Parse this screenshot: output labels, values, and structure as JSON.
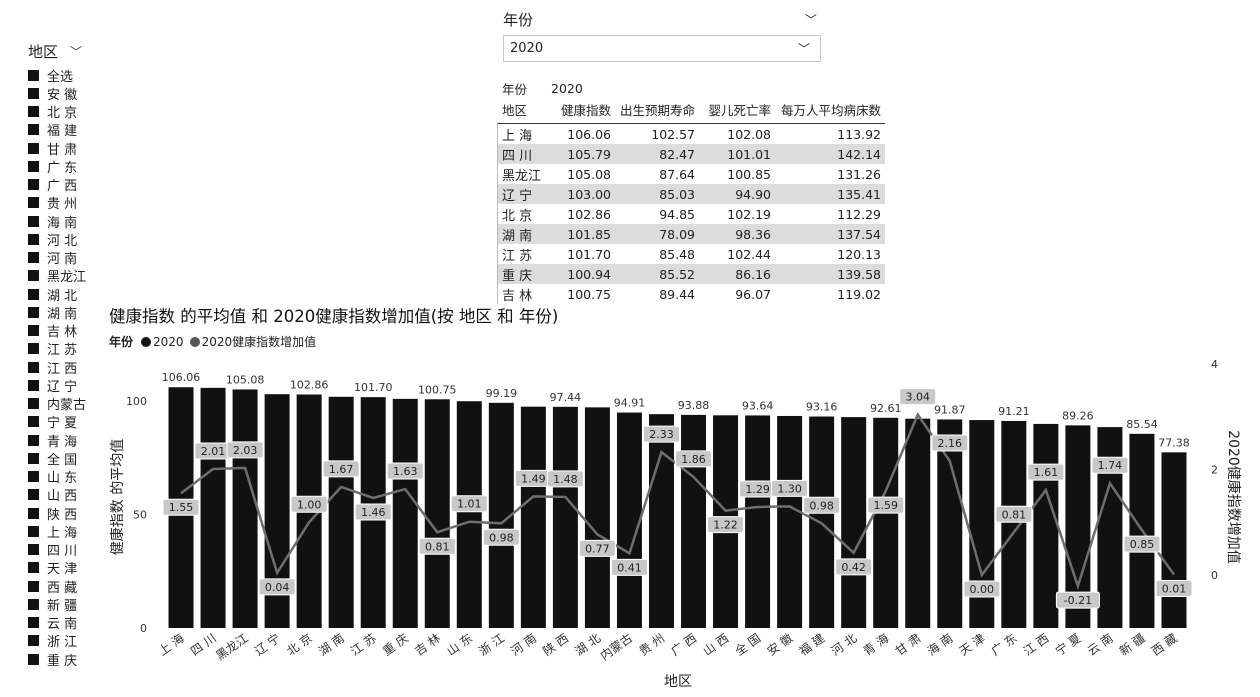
{
  "slicer_region": {
    "title": "地区",
    "chevron": "chevron-down-icon",
    "items": [
      "全选",
      "安 徽",
      "北 京",
      "福 建",
      "甘 肃",
      "广 东",
      "广 西",
      "贵 州",
      "海 南",
      "河 北",
      "河 南",
      "黑龙江",
      "湖 北",
      "湖 南",
      "吉 林",
      "江 苏",
      "江 西",
      "辽 宁",
      "内蒙古",
      "宁 夏",
      "青 海",
      "全 国",
      "山 东",
      "山 西",
      "陕 西",
      "上 海",
      "四 川",
      "天 津",
      "西 藏",
      "新 疆",
      "云 南",
      "浙 江",
      "重 庆"
    ]
  },
  "slicer_year": {
    "title": "年份",
    "value": "2020",
    "chevron": "chevron-down-icon"
  },
  "table": {
    "header_row1": {
      "c0": "年份",
      "c1": "2020"
    },
    "header_row2": {
      "c0": "地区",
      "c1": "健康指数",
      "c2": "出生预期寿命",
      "c3": "婴儿死亡率",
      "c4": "每万人平均病床数"
    },
    "rows": [
      {
        "region": "上 海",
        "v1": "106.06",
        "v2": "102.57",
        "v3": "102.08",
        "v4": "113.92"
      },
      {
        "region": "四 川",
        "v1": "105.79",
        "v2": "82.47",
        "v3": "101.01",
        "v4": "142.14"
      },
      {
        "region": "黑龙江",
        "v1": "105.08",
        "v2": "87.64",
        "v3": "100.85",
        "v4": "131.26"
      },
      {
        "region": "辽 宁",
        "v1": "103.00",
        "v2": "85.03",
        "v3": "94.90",
        "v4": "135.41"
      },
      {
        "region": "北 京",
        "v1": "102.86",
        "v2": "94.85",
        "v3": "102.19",
        "v4": "112.29"
      },
      {
        "region": "湖 南",
        "v1": "101.85",
        "v2": "78.09",
        "v3": "98.36",
        "v4": "137.54"
      },
      {
        "region": "江 苏",
        "v1": "101.70",
        "v2": "85.48",
        "v3": "102.44",
        "v4": "120.13"
      },
      {
        "region": "重 庆",
        "v1": "100.94",
        "v2": "85.52",
        "v3": "86.16",
        "v4": "139.58"
      },
      {
        "region": "吉 林",
        "v1": "100.75",
        "v2": "89.44",
        "v3": "96.07",
        "v4": "119.02"
      }
    ]
  },
  "chart_title": "健康指数 的平均值 和 2020健康指数增加值(按 地区 和 年份)",
  "legend": {
    "title": "年份",
    "items": [
      {
        "label": "2020",
        "color": "#111111"
      },
      {
        "label": "2020健康指数增加值",
        "color": "#555555"
      }
    ]
  },
  "colors": {
    "bar": "#111111",
    "line": "#6e6e6e",
    "label_bg": "#c8c8c8"
  },
  "chart_data": {
    "type": "bar",
    "title": "健康指数 的平均值 和 2020健康指数增加值(按 地区 和 年份)",
    "xlabel": "地区",
    "ylabel": "健康指数 的平均值",
    "y2label": "2020健康指数增加值",
    "ylim": [
      0,
      110
    ],
    "y_ticks": [
      0,
      50,
      100
    ],
    "y2lim": [
      -1,
      4
    ],
    "y2_ticks": [
      0,
      2,
      4
    ],
    "categories": [
      "上 海",
      "四 川",
      "黑龙江",
      "辽 宁",
      "北 京",
      "湖 南",
      "江 苏",
      "重 庆",
      "吉 林",
      "山 东",
      "浙 江",
      "河 南",
      "陕 西",
      "湖 北",
      "内蒙古",
      "贵 州",
      "广 西",
      "山 西",
      "全 国",
      "安 徽",
      "福 建",
      "河 北",
      "青 海",
      "甘 肃",
      "海 南",
      "天 津",
      "广 东",
      "江 西",
      "宁 夏",
      "云 南",
      "新 疆",
      "西 藏"
    ],
    "series": [
      {
        "name": "2020",
        "kind": "bar",
        "values": [
          106.06,
          105.79,
          105.08,
          103.0,
          102.86,
          101.85,
          101.7,
          100.94,
          100.75,
          99.9,
          99.19,
          97.5,
          97.44,
          97.2,
          94.91,
          94.2,
          93.88,
          93.7,
          93.64,
          93.4,
          93.16,
          92.9,
          92.61,
          92.2,
          91.87,
          91.6,
          91.21,
          89.9,
          89.26,
          88.5,
          85.54,
          77.38
        ],
        "labels": [
          "106.06",
          "",
          "105.08",
          "",
          "102.86",
          "",
          "101.70",
          "",
          "100.75",
          "",
          "99.19",
          "",
          "97.44",
          "",
          "94.91",
          "",
          "93.88",
          "",
          "93.64",
          "",
          "93.16",
          "",
          "92.61",
          "",
          "91.87",
          "",
          "91.21",
          "",
          "89.26",
          "",
          "85.54",
          "77.38"
        ]
      },
      {
        "name": "2020健康指数增加值",
        "kind": "line",
        "values": [
          1.55,
          2.01,
          2.03,
          0.04,
          1.0,
          1.67,
          1.46,
          1.63,
          0.81,
          1.01,
          0.98,
          1.49,
          1.48,
          0.77,
          0.41,
          2.33,
          1.86,
          1.22,
          1.29,
          1.3,
          0.98,
          0.42,
          1.59,
          3.04,
          2.16,
          0.0,
          0.81,
          1.61,
          -0.21,
          1.74,
          0.85,
          0.01
        ],
        "labels": [
          "1.55",
          "2.01",
          "2.03",
          "0.04",
          "1.00",
          "1.67",
          "1.46",
          "1.63",
          "0.81",
          "1.01",
          "0.98",
          "1.49",
          "1.48",
          "0.77",
          "0.41",
          "2.33",
          "1.86",
          "1.22",
          "1.29",
          "1.30",
          "0.98",
          "0.42",
          "1.59",
          "3.04",
          "2.16",
          "0.00",
          "0.81",
          "1.61",
          "-0.21",
          "1.74",
          "0.85",
          "0.01"
        ]
      }
    ]
  }
}
